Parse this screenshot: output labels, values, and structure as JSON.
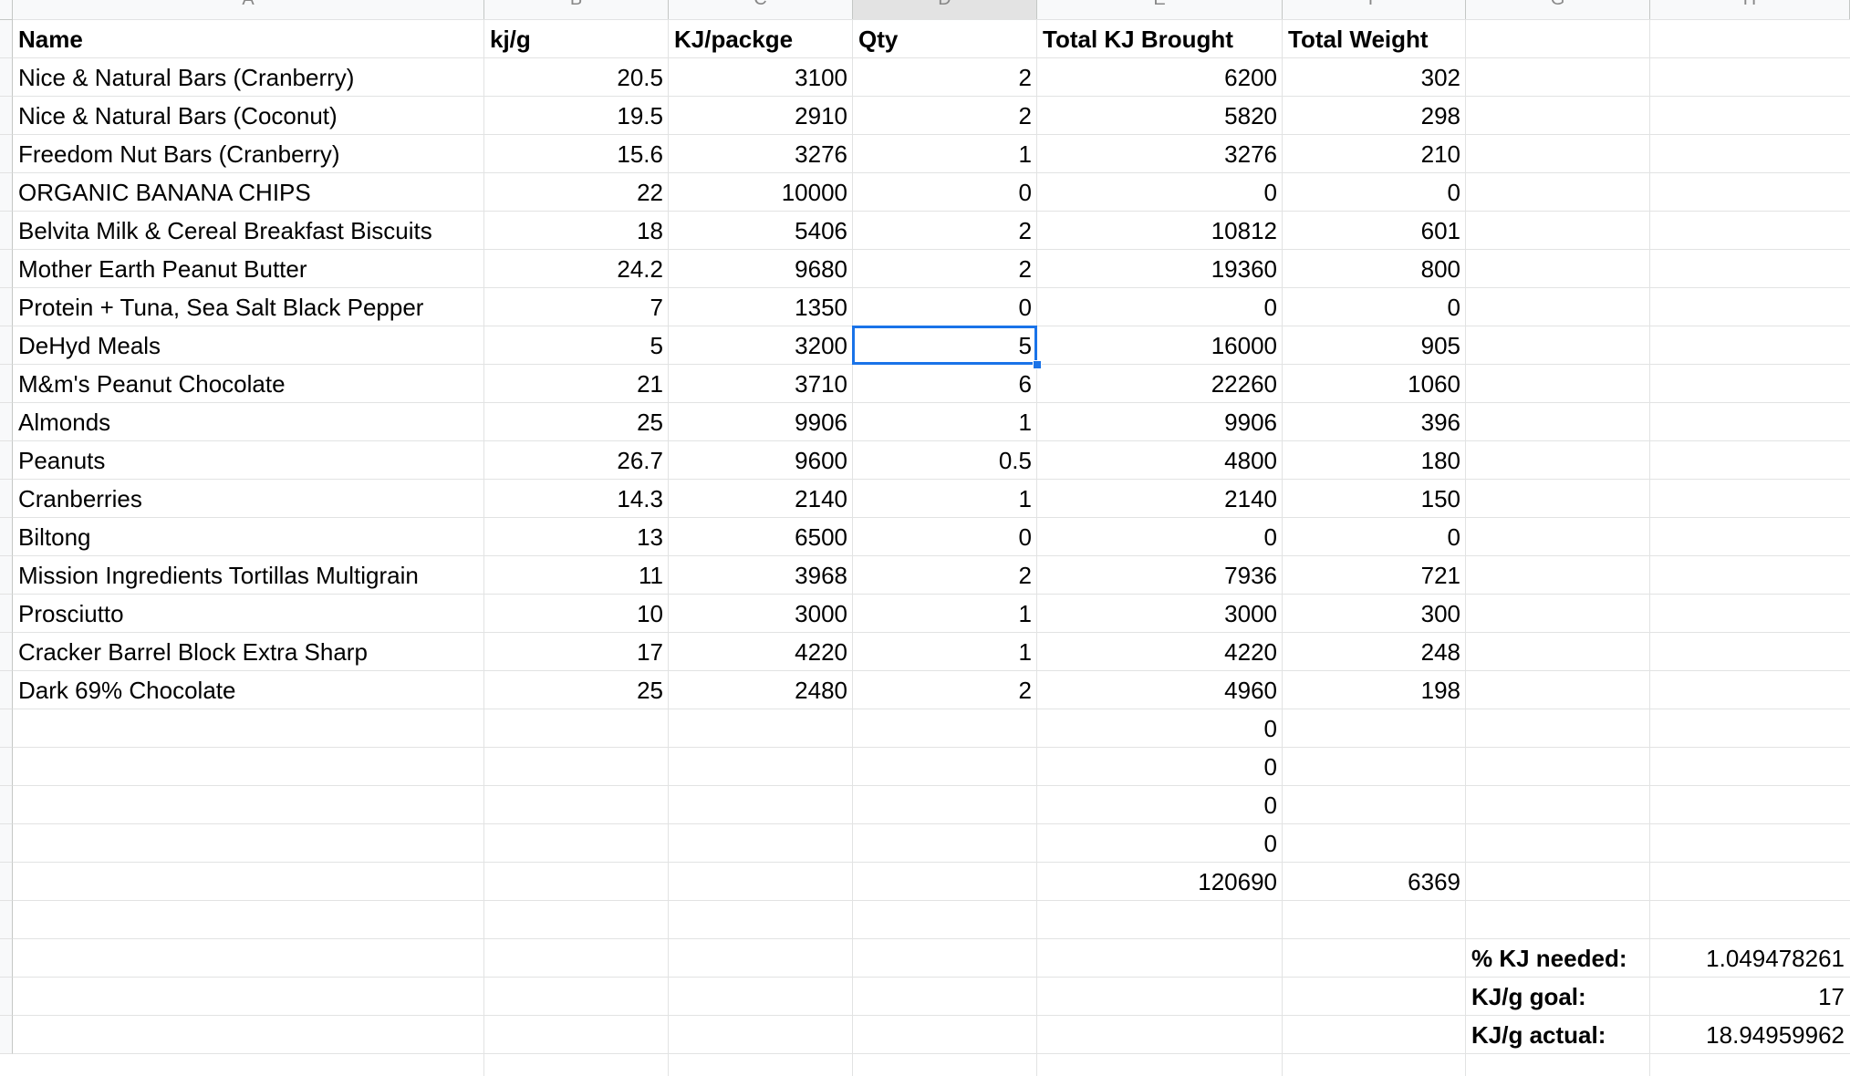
{
  "column_letters": [
    "A",
    "B",
    "C",
    "D",
    "E",
    "F",
    "G",
    "H"
  ],
  "header": [
    "Name",
    "kj/g",
    "KJ/packge",
    "Qty",
    "Total KJ Brought",
    "Total Weight"
  ],
  "rows": [
    [
      "Nice & Natural Bars (Cranberry)",
      "20.5",
      "3100",
      "2",
      "6200",
      "302"
    ],
    [
      "Nice & Natural Bars (Coconut)",
      "19.5",
      "2910",
      "2",
      "5820",
      "298"
    ],
    [
      "Freedom Nut Bars (Cranberry)",
      "15.6",
      "3276",
      "1",
      "3276",
      "210"
    ],
    [
      "ORGANIC BANANA CHIPS",
      "22",
      "10000",
      "0",
      "0",
      "0"
    ],
    [
      "Belvita Milk & Cereal Breakfast Biscuits",
      "18",
      "5406",
      "2",
      "10812",
      "601"
    ],
    [
      "Mother Earth Peanut Butter",
      "24.2",
      "9680",
      "2",
      "19360",
      "800"
    ],
    [
      "Protein + Tuna, Sea Salt Black Pepper",
      "7",
      "1350",
      "0",
      "0",
      "0"
    ],
    [
      "DeHyd Meals",
      "5",
      "3200",
      "5",
      "16000",
      "905"
    ],
    [
      "M&m's Peanut Chocolate",
      "21",
      "3710",
      "6",
      "22260",
      "1060"
    ],
    [
      "Almonds",
      "25",
      "9906",
      "1",
      "9906",
      "396"
    ],
    [
      "Peanuts",
      "26.7",
      "9600",
      "0.5",
      "4800",
      "180"
    ],
    [
      "Cranberries",
      "14.3",
      "2140",
      "1",
      "2140",
      "150"
    ],
    [
      "Biltong",
      "13",
      "6500",
      "0",
      "0",
      "0"
    ],
    [
      "Mission Ingredients Tortillas Multigrain",
      "11",
      "3968",
      "2",
      "7936",
      "721"
    ],
    [
      "Prosciutto",
      "10",
      "3000",
      "1",
      "3000",
      "300"
    ],
    [
      "Cracker Barrel Block Extra Sharp",
      "17",
      "4220",
      "1",
      "4220",
      "248"
    ],
    [
      "Dark 69% Chocolate",
      "25",
      "2480",
      "2",
      "4960",
      "198"
    ]
  ],
  "empty_kj_values": [
    "0",
    "0",
    "0",
    "0"
  ],
  "totals": {
    "total_kj": "120690",
    "total_weight": "6369"
  },
  "summary": [
    {
      "label": "% KJ needed:",
      "value": "1.049478261"
    },
    {
      "label": "KJ/g goal:",
      "value": "17"
    },
    {
      "label": "KJ/g actual:",
      "value": "18.94959962"
    }
  ],
  "selected_cell": "D9",
  "colors": {
    "selection": "#1a73e8",
    "gridline": "#e2e3e3",
    "header_bg": "#f8f9fa"
  }
}
